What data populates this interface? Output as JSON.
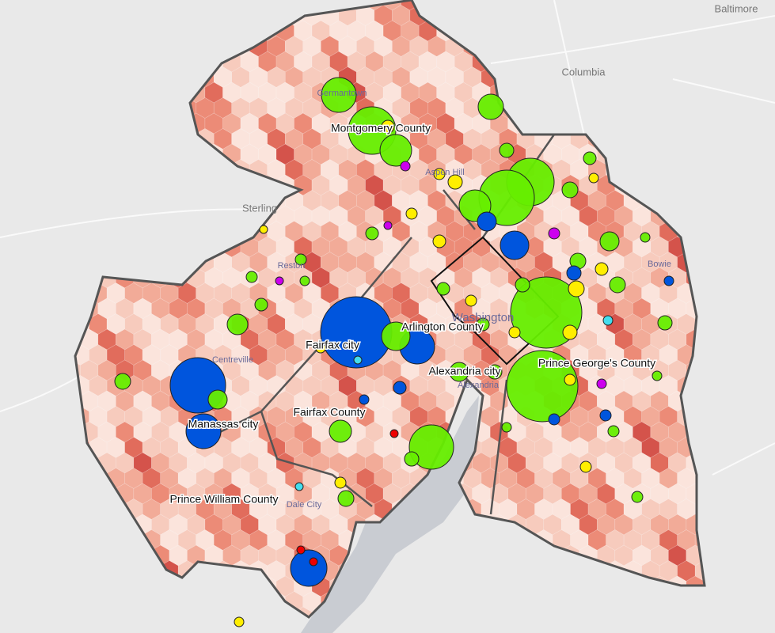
{
  "map": {
    "base_labels": [
      "Baltimore",
      "Columbia",
      "Sterling"
    ],
    "place_labels": [
      "Germantown",
      "Aspen Hill",
      "Reston",
      "Bowie",
      "Washington",
      "Centreville",
      "Alexandria",
      "Dale City"
    ],
    "county_labels": [
      "Montgomery County",
      "Arlington County",
      "Fairfax city",
      "Alexandria city",
      "Prince George's County",
      "Fairfax County",
      "Manassas city",
      "Prince William County"
    ]
  }
}
